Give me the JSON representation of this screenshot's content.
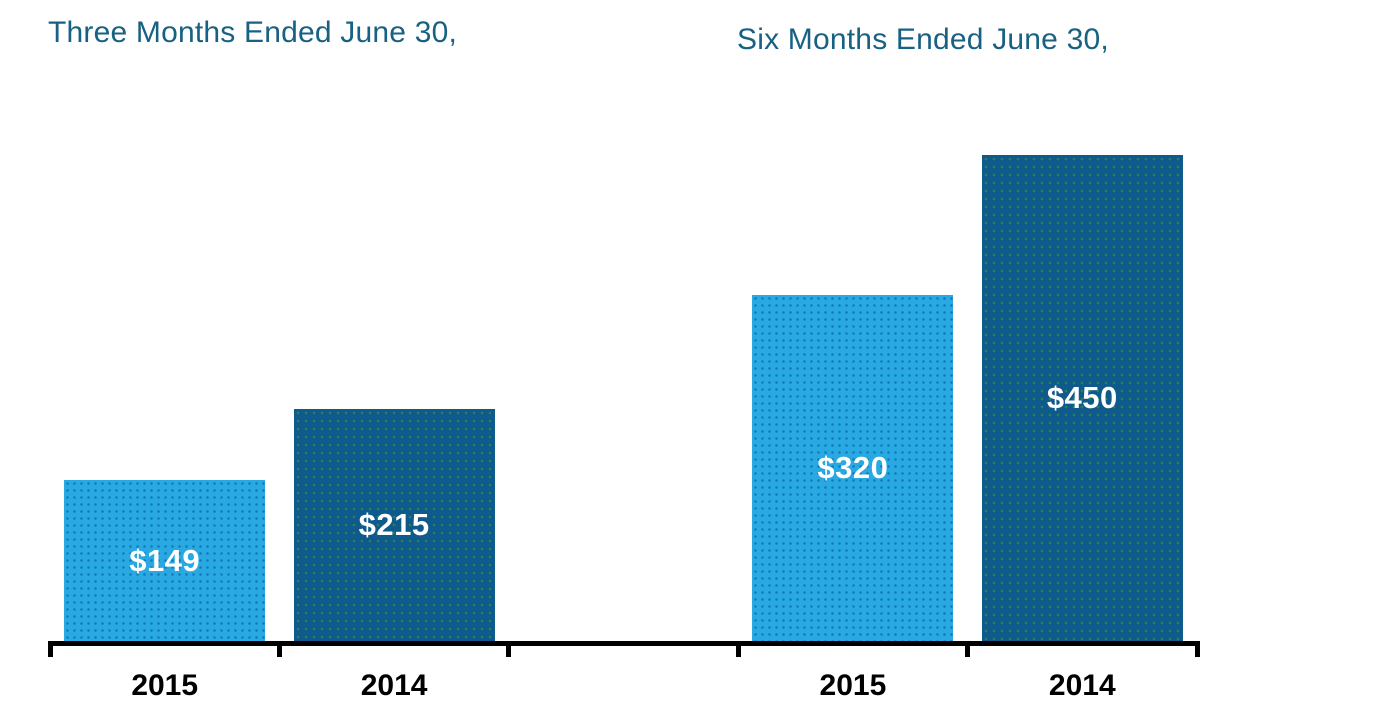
{
  "page": {
    "background_color": "#FFFFFF"
  },
  "chart_data": {
    "type": "bar",
    "layout": {
      "grid": false,
      "legend": "none",
      "y_axis_visible": false,
      "x_axis_visible": true,
      "value_label_position": "center",
      "groups_share_x_axis": true
    },
    "colors": {
      "title_text": "#186182",
      "axis": "#000000",
      "x_label_text": "#000000",
      "value_label_text": "#FFFFFF",
      "bar_2015_fill": "#29A9E1",
      "bar_2015_dot": "#1478BE",
      "bar_2014_fill": "#0F5A8C",
      "bar_2014_dot": "#2E7F53"
    },
    "groups": [
      {
        "title": "Three Months Ended June 30,",
        "categories": [
          "2015",
          "2014"
        ],
        "values": [
          149,
          215
        ],
        "value_labels": [
          "$149",
          "$215"
        ]
      },
      {
        "title": "Six Months Ended June 30,",
        "categories": [
          "2015",
          "2014"
        ],
        "values": [
          320,
          450
        ],
        "value_labels": [
          "$320",
          "$450"
        ]
      }
    ]
  }
}
